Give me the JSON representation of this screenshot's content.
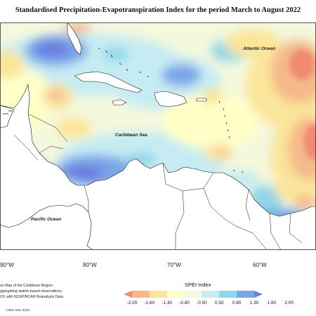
{
  "title": "Standardised Precipitation-Evapotranspiration Index for the period March to August 2022",
  "map": {
    "labels": {
      "atlantic": "Atlantic Ocean",
      "caribbean": "Caribbean Sea",
      "pacific": "Pacific Ocean"
    },
    "longitudes": [
      "90°W",
      "80°W",
      "70°W",
      "60°W"
    ]
  },
  "notes": [
    "on Map of the Caribbean Region",
    "ggregating station based observations,",
    "CF, with NCEP/NCAR Reanalysis Data."
  ],
  "footer": "CIMH Mar-2023",
  "legend": {
    "title": "SPEI Index",
    "ticks": [
      "-2.00",
      "-1.60",
      "-1.30",
      "-0.80",
      "-0.50",
      "0.50",
      "0.80",
      "1.30",
      "1.60",
      "2.00"
    ],
    "colors": [
      "#f08a70",
      "#f6b98a",
      "#fbe59a",
      "#ffffc8",
      "#f4f8dc",
      "#c6ecf3",
      "#8fd6ea",
      "#7aa6e8",
      "#6b7fe0"
    ]
  }
}
